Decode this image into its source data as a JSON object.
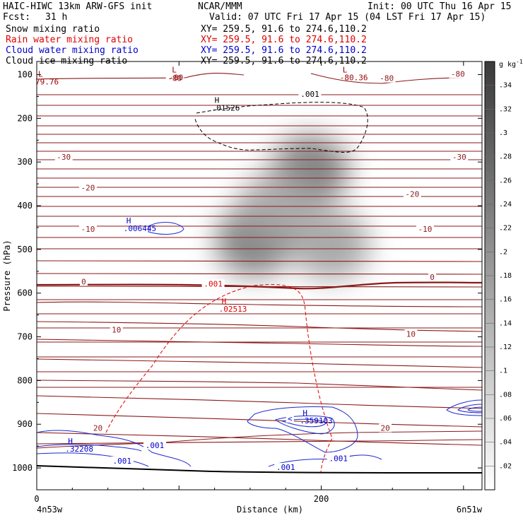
{
  "header": {
    "model": "HAIC-HIWC 13km ARW-GFS init",
    "center": "NCAR/MMM",
    "init": "Init: 00 UTC Thu 16 Apr 15",
    "fcst_label": "Fcst:",
    "fcst_value": "31 h",
    "valid": "Valid: 07 UTC Fri 17 Apr 15 (04 LST Fri 17 Apr 15)"
  },
  "fields": [
    {
      "name": "Snow mixing ratio",
      "xy": "XY= 259.5, 91.6 to 274.6,110.2",
      "color": "#000000"
    },
    {
      "name": "Rain water mixing ratio",
      "xy": "XY= 259.5, 91.6 to 274.6,110.2",
      "color": "#dd0000"
    },
    {
      "name": "Cloud water mixing ratio",
      "xy": "XY= 259.5, 91.6 to 274.6,110.2",
      "color": "#0000cc"
    },
    {
      "name": "Cloud ice mixing ratio",
      "xy": "XY= 259.5, 91.6 to 274.6,110.2",
      "color": "#000000"
    }
  ],
  "chart_data": {
    "type": "heatmap",
    "xlabel": "Distance (km)",
    "ylabel": "Pressure (hPa)",
    "xlim": [
      0,
      313
    ],
    "ylim": [
      1050,
      70
    ],
    "x_ticks": [
      0,
      100,
      200,
      300
    ],
    "x_tick_labels": [
      "0",
      "200"
    ],
    "y_ticks": [
      100,
      200,
      300,
      400,
      500,
      600,
      700,
      800,
      900,
      1000
    ],
    "endpoint_left": "4n53w",
    "endpoint_right": "6n51w",
    "colorbar": {
      "unit": "g kg",
      "unit_exp": "-1",
      "min": 0,
      "max": 0.36,
      "ticks": [
        ".02",
        ".04",
        ".06",
        ".08",
        ".1",
        ".12",
        ".14",
        ".16",
        ".18",
        ".2",
        ".22",
        ".24",
        ".26",
        ".28",
        ".3",
        ".32",
        ".34"
      ]
    },
    "shading_blobs": [
      {
        "x": 192,
        "p": 320,
        "value": 0.26
      },
      {
        "x": 153,
        "p": 480,
        "value": 0.26
      },
      {
        "x": 207,
        "p": 490,
        "value": 0.18
      },
      {
        "x": 168,
        "p": 400,
        "value": 0.16
      }
    ],
    "temperature_contours": [
      {
        "value": -80,
        "p": 110
      },
      {
        "value": -30,
        "p": 290
      },
      {
        "value": -20,
        "p": 370
      },
      {
        "value": -10,
        "p": 455
      },
      {
        "value": 0,
        "p": 570
      },
      {
        "value": 10,
        "p": 690
      },
      {
        "value": 20,
        "p": 920
      }
    ],
    "temperature_labels": [
      {
        "text": "-80",
        "x": 97,
        "p": 110
      },
      {
        "text": "-80",
        "x": 246,
        "p": 110
      },
      {
        "text": "-80",
        "x": 296,
        "p": 100
      },
      {
        "text": "-30",
        "x": 19,
        "p": 290
      },
      {
        "text": "-30",
        "x": 297,
        "p": 290
      },
      {
        "text": "-20",
        "x": 36,
        "p": 360
      },
      {
        "text": "-20",
        "x": 264,
        "p": 375
      },
      {
        "text": "-10",
        "x": 36,
        "p": 455
      },
      {
        "text": "-10",
        "x": 273,
        "p": 455
      },
      {
        "text": "0",
        "x": 33,
        "p": 575
      },
      {
        "text": "0",
        "x": 278,
        "p": 565
      },
      {
        "text": "10",
        "x": 56,
        "p": 685
      },
      {
        "text": "10",
        "x": 263,
        "p": 695
      },
      {
        "text": "20",
        "x": 43,
        "p": 910
      },
      {
        "text": "20",
        "x": 245,
        "p": 910
      },
      {
        "text": ".001",
        "x": 192,
        "p": 146
      },
      {
        "text": ".001",
        "x": 124,
        "p": 580
      }
    ],
    "extrema": [
      {
        "type": "L",
        "value": "-80",
        "x": 95,
        "p": 95,
        "color": "#990000"
      },
      {
        "type": "L",
        "value": "-80.36",
        "x": 215,
        "p": 95,
        "color": "#990000"
      },
      {
        "type": "L",
        "value": "79.76",
        "x": 1,
        "p": 105,
        "color": "#990000"
      },
      {
        "type": "H",
        "value": ".01526",
        "x": 125,
        "p": 165,
        "color": "#000000"
      },
      {
        "type": "H",
        "value": ".006445",
        "x": 63,
        "p": 440,
        "color": "#0000cc"
      },
      {
        "type": "H",
        "value": ".02513",
        "x": 130,
        "p": 625,
        "color": "#dd0000"
      },
      {
        "type": "H",
        "value": ".359103",
        "x": 187,
        "p": 880,
        "color": "#0000cc"
      },
      {
        "type": "H",
        "value": ".32208",
        "x": 22,
        "p": 945,
        "color": "#0000cc"
      }
    ],
    "cloud_water_labels": [
      {
        "text": ".001",
        "x": 83,
        "p": 950
      },
      {
        "text": ".001",
        "x": 60,
        "p": 985
      },
      {
        "text": ".001",
        "x": 175,
        "p": 1000
      },
      {
        "text": ".001",
        "x": 212,
        "p": 980
      }
    ],
    "other_labels": [
      {
        "text": "<",
        "x": 178,
        "p": 888,
        "color": "#0000cc"
      }
    ]
  }
}
